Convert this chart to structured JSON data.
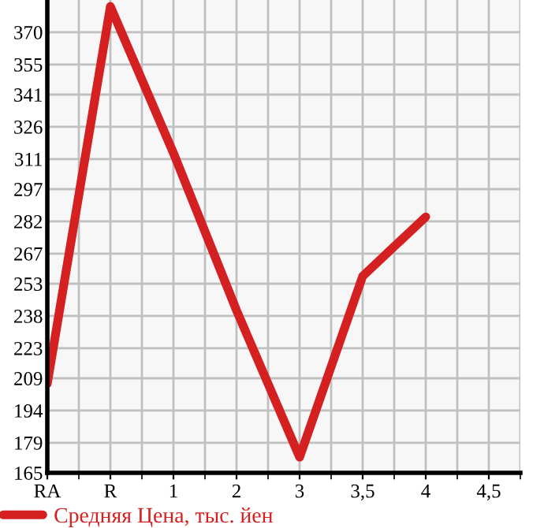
{
  "chart_data": {
    "type": "line",
    "categories": [
      "RA",
      "R",
      "1",
      "2",
      "3",
      "3,5",
      "4",
      "4,5"
    ],
    "series": [
      {
        "name": "Средняя Цена, тыс. йен",
        "color": "#d42020",
        "values": [
          206.5,
          382,
          313.8,
          240.6,
          172.3,
          256.5,
          284.1,
          null
        ]
      }
    ],
    "ylim": [
      165,
      385
    ],
    "yticks": [
      165,
      179,
      194,
      209,
      223,
      238,
      253,
      267,
      282,
      297,
      311,
      326,
      341,
      355,
      370
    ],
    "grid": true,
    "legend": "bottom",
    "marker": "none",
    "line_style": "solid"
  }
}
